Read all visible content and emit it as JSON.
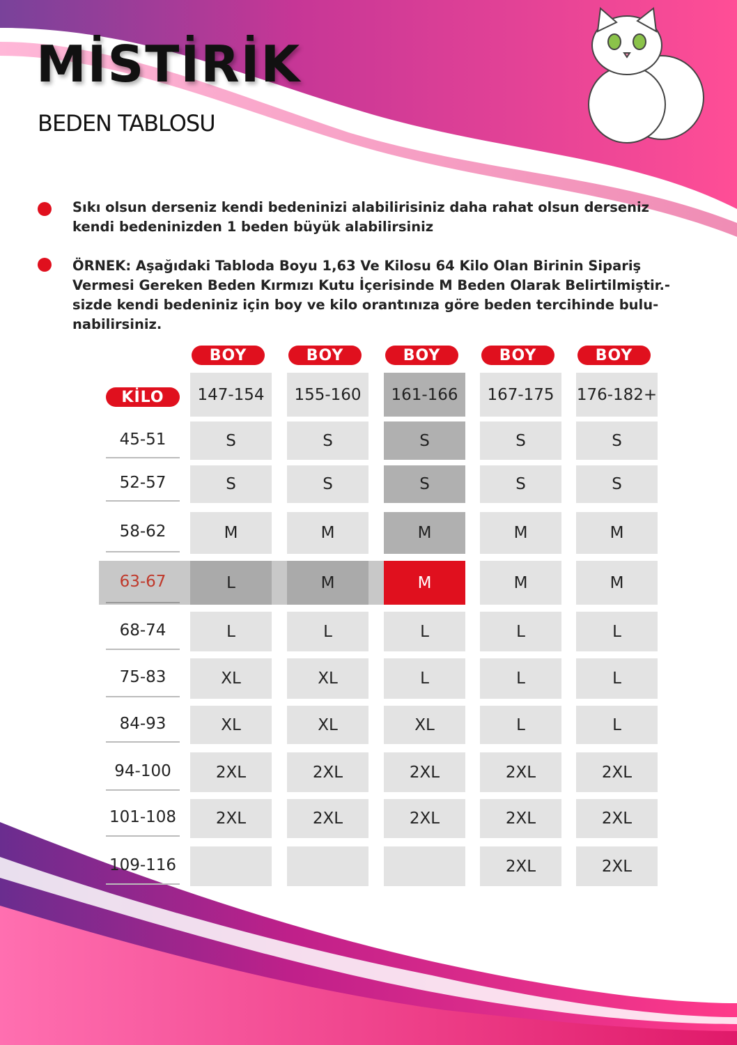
{
  "header": {
    "brand": "MİSTİRİK",
    "subtitle": "BEDEN TABLOSU"
  },
  "notes": [
    "Sıkı olsun derseniz kendi bedeninizi alabilirisiniz daha rahat olsun derseniz kendi bedeninizden 1 beden büyük alabilirsiniz",
    "ÖRNEK: Aşağıdaki Tabloda Boyu 1,63 Ve Kilosu 64 Kilo Olan Birinin Sipariş Vermesi Gereken Beden Kırmızı Kutu İçerisinde M Beden Olarak Belirtilmiştir.- sizde kendi bedeniniz için boy ve kilo orantınıza göre beden tercihinde bulu-nabilirsiniz."
  ],
  "table": {
    "boy_labels": [
      "BOY",
      "BOY",
      "BOY",
      "BOY",
      "BOY"
    ],
    "kilo_label": "KİLO",
    "heights": [
      "147-154",
      "155-160",
      "161-166",
      "167-175",
      "176-182+"
    ],
    "rows": [
      {
        "kilo": "45-51",
        "sizes": [
          "S",
          "S",
          "S",
          "S",
          "S"
        ]
      },
      {
        "kilo": "52-57",
        "sizes": [
          "S",
          "S",
          "S",
          "S",
          "S"
        ]
      },
      {
        "kilo": "58-62",
        "sizes": [
          "M",
          "M",
          "M",
          "M",
          "M"
        ]
      },
      {
        "kilo": "63-67",
        "sizes": [
          "L",
          "M",
          "M",
          "M",
          "M"
        ]
      },
      {
        "kilo": "68-74",
        "sizes": [
          "L",
          "L",
          "L",
          "L",
          "L"
        ]
      },
      {
        "kilo": "75-83",
        "sizes": [
          "XL",
          "XL",
          "L",
          "L",
          "L"
        ]
      },
      {
        "kilo": "84-93",
        "sizes": [
          "XL",
          "XL",
          "XL",
          "L",
          "L"
        ]
      },
      {
        "kilo": "94-100",
        "sizes": [
          "2XL",
          "2XL",
          "2XL",
          "2XL",
          "2XL"
        ]
      },
      {
        "kilo": "101-108",
        "sizes": [
          "2XL",
          "2XL",
          "2XL",
          "2XL",
          "2XL"
        ]
      },
      {
        "kilo": "109-116",
        "sizes": [
          null,
          null,
          null,
          "2XL",
          "2XL"
        ]
      }
    ]
  }
}
